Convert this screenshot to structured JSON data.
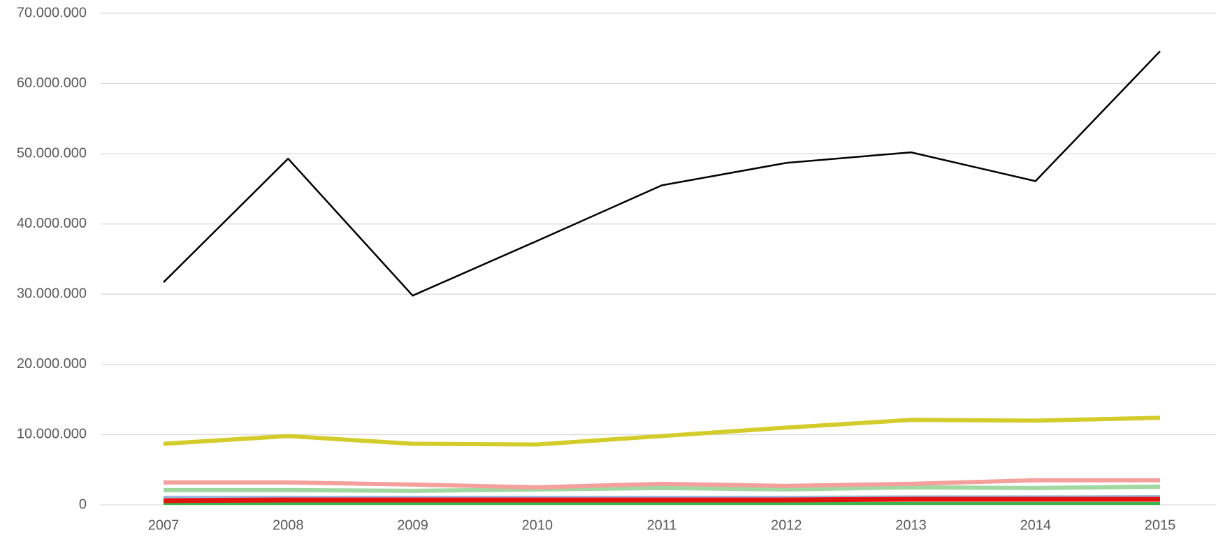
{
  "chart_data": {
    "type": "line",
    "categories": [
      "2007",
      "2008",
      "2009",
      "2010",
      "2011",
      "2012",
      "2013",
      "2014",
      "2015"
    ],
    "series": [
      {
        "color": "#9ab8e0",
        "width": 4,
        "values": [
          1100000,
          1100000,
          1100000,
          1100000,
          1100000,
          1100000,
          1150000,
          1150000,
          1200000
        ]
      },
      {
        "color": "#3cb54a",
        "width": 4,
        "values": [
          200000,
          200000,
          200000,
          200000,
          200000,
          200000,
          200000,
          200000,
          200000
        ]
      },
      {
        "color": "#9fd8a0",
        "width": 6,
        "values": [
          2100000,
          2100000,
          2000000,
          2200000,
          2400000,
          2200000,
          2500000,
          2400000,
          2600000
        ]
      },
      {
        "color": "#f4a09c",
        "width": 6,
        "values": [
          3200000,
          3200000,
          2900000,
          2500000,
          3000000,
          2700000,
          3000000,
          3500000,
          3500000
        ]
      },
      {
        "color": "#e5130f",
        "width": 7,
        "values": [
          600000,
          700000,
          700000,
          700000,
          700000,
          700000,
          800000,
          800000,
          800000
        ]
      },
      {
        "color": "#d4cc2a",
        "width": 6,
        "values": [
          8700000,
          9800000,
          8700000,
          8600000,
          9800000,
          11000000,
          12100000,
          12000000,
          12400000
        ]
      },
      {
        "color": "#000000",
        "width": 2.5,
        "values": [
          31700000,
          49300000,
          29800000,
          37600000,
          45500000,
          48700000,
          50200000,
          46100000,
          64600000
        ]
      }
    ],
    "ylim": [
      0,
      70000000
    ],
    "yticks": [
      0,
      {
        "value": 10000000,
        "label": "10.000.000"
      },
      {
        "value": 20000000,
        "label": "20.000.000"
      },
      {
        "value": 30000000,
        "label": "30.000.000"
      },
      {
        "value": 40000000,
        "label": "40.000.000"
      },
      {
        "value": 50000000,
        "label": "50.000.000"
      },
      {
        "value": 60000000,
        "label": "60.000.000"
      },
      {
        "value": 70000000,
        "label": "70.000.000"
      }
    ],
    "grid": true
  }
}
